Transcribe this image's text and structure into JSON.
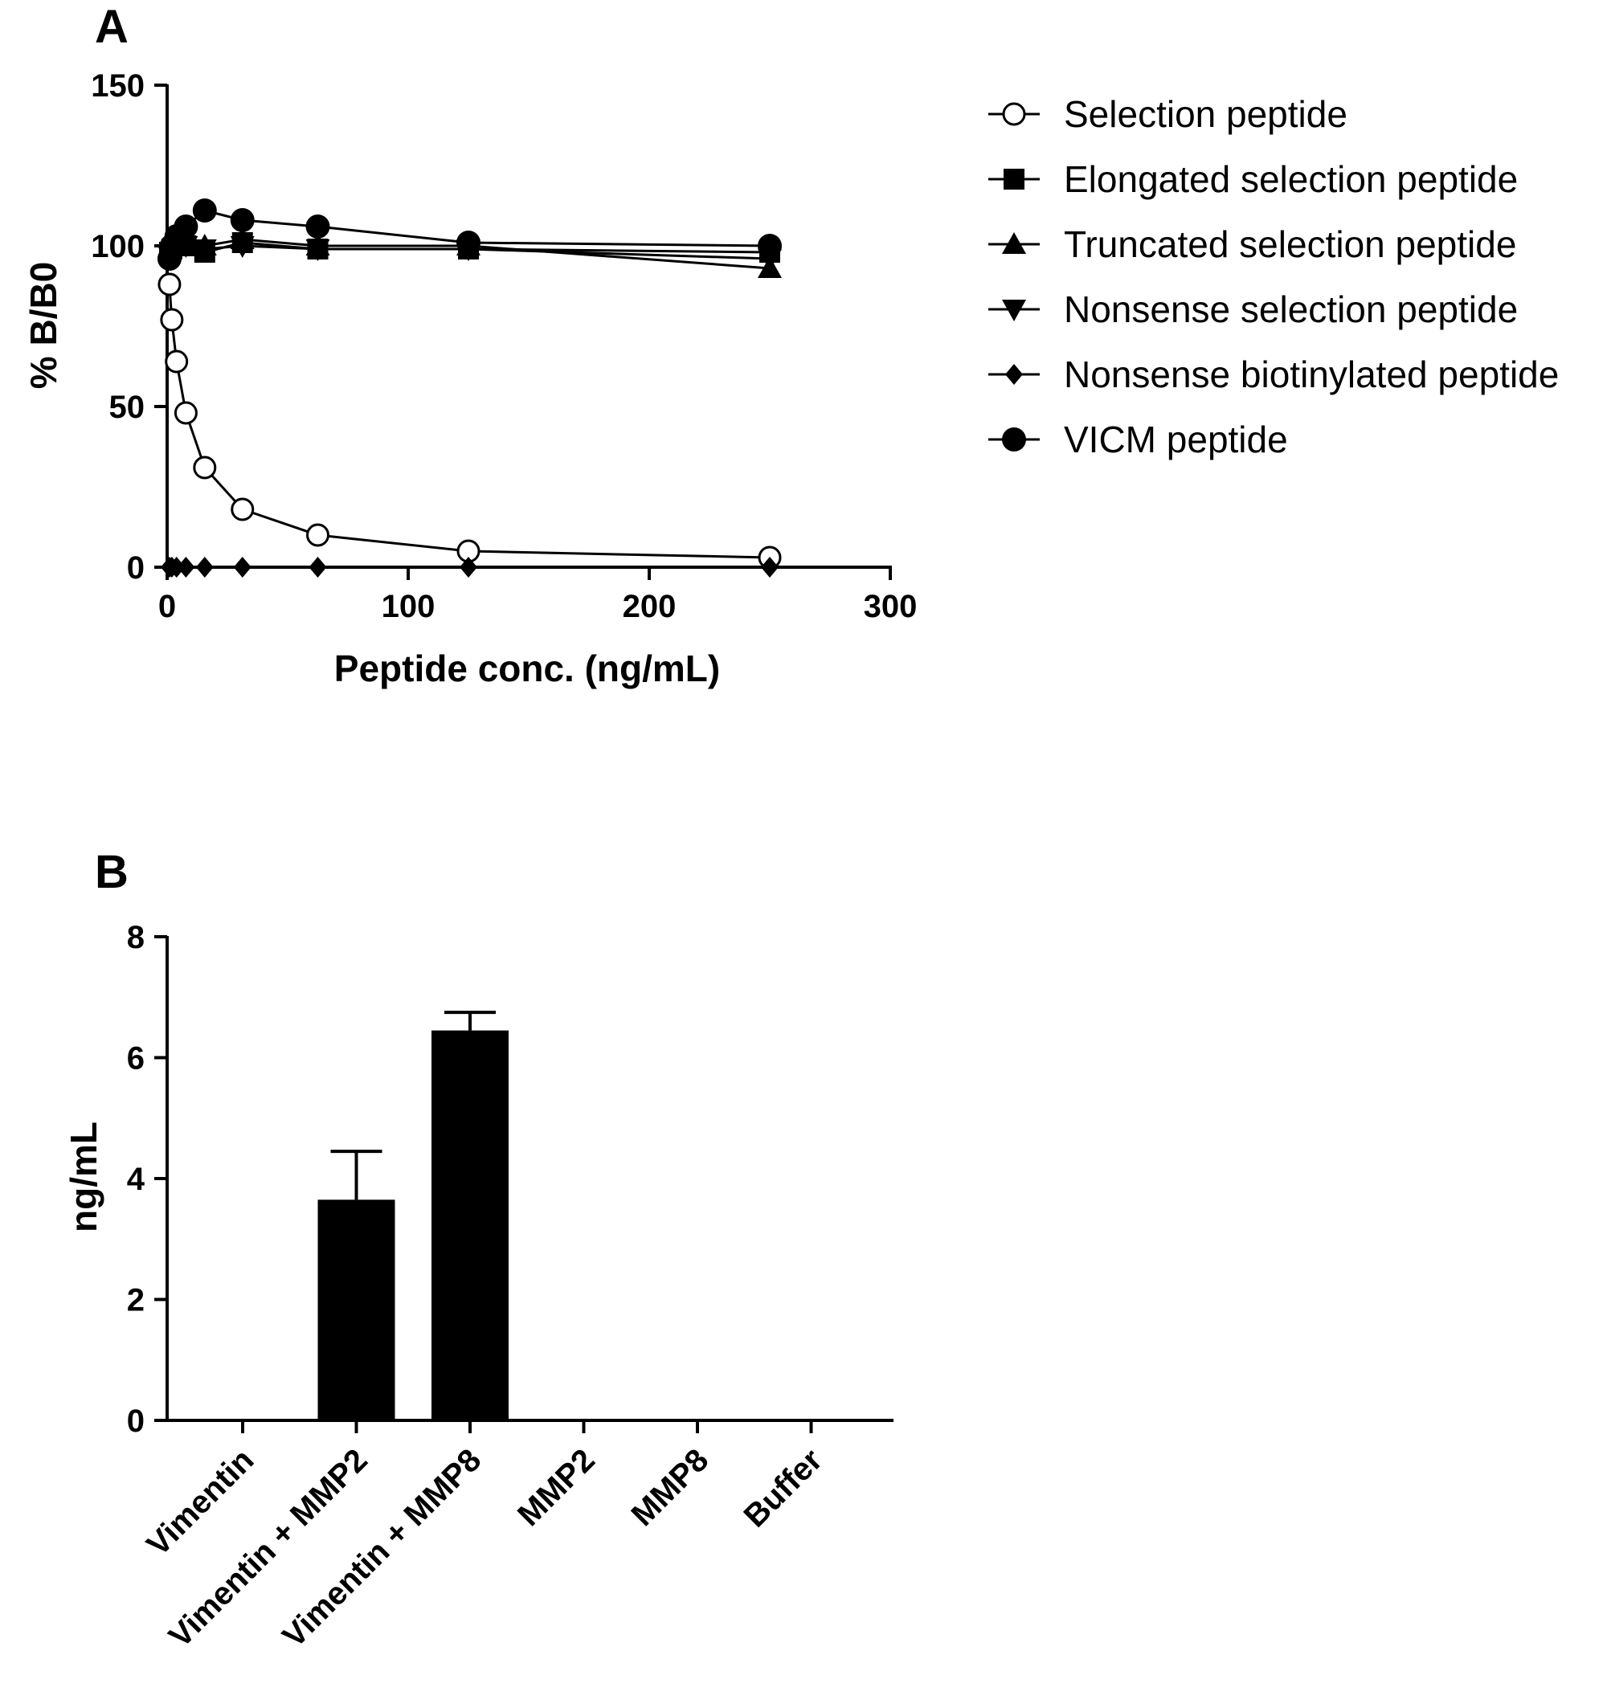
{
  "chart_data": [
    {
      "panel": "A",
      "type": "line",
      "xlabel": "Peptide conc. (ng/mL)",
      "ylabel": "% B/B0",
      "xlim": [
        0,
        300
      ],
      "ylim": [
        0,
        150
      ],
      "xticks": [
        "0",
        "100",
        "200",
        "300"
      ],
      "yticks": [
        "0",
        "50",
        "100",
        "150"
      ],
      "legend_position": "right",
      "grid": false,
      "series": [
        {
          "name": "Selection peptide",
          "marker": "open-circle",
          "x": [
            0.98,
            1.95,
            3.9,
            7.8,
            15.6,
            31.25,
            62.5,
            125,
            250
          ],
          "y": [
            88,
            77,
            64,
            48,
            31,
            18,
            10,
            5,
            3
          ]
        },
        {
          "name": "Elongated selection peptide",
          "marker": "square",
          "x": [
            0.98,
            1.95,
            3.9,
            7.8,
            15.6,
            31.25,
            62.5,
            125,
            250
          ],
          "y": [
            98,
            99,
            100,
            100,
            98,
            101,
            99,
            99,
            98
          ]
        },
        {
          "name": "Truncated selection peptide",
          "marker": "triangle-up",
          "x": [
            0.98,
            1.95,
            3.9,
            7.8,
            15.6,
            31.25,
            62.5,
            125,
            250
          ],
          "y": [
            99,
            100,
            101,
            101,
            100,
            102,
            100,
            100,
            93
          ]
        },
        {
          "name": "Nonsense selection peptide",
          "marker": "triangle-down",
          "x": [
            0.98,
            1.95,
            3.9,
            7.8,
            15.6,
            31.25,
            62.5,
            125,
            250
          ],
          "y": [
            97,
            98,
            99,
            100,
            99,
            100,
            99,
            99,
            96
          ]
        },
        {
          "name": "Nonsense biotinylated peptide",
          "marker": "diamond",
          "x": [
            0.98,
            1.95,
            3.9,
            7.8,
            15.6,
            31.25,
            62.5,
            125,
            250
          ],
          "y": [
            0,
            0,
            0,
            0,
            0,
            0,
            0,
            0,
            0
          ]
        },
        {
          "name": "VICM peptide",
          "marker": "filled-circle",
          "x": [
            0.98,
            1.95,
            3.9,
            7.8,
            15.6,
            31.25,
            62.5,
            125,
            250
          ],
          "y": [
            96,
            100,
            103,
            106,
            111,
            108,
            106,
            101,
            100
          ]
        }
      ]
    },
    {
      "panel": "B",
      "type": "bar",
      "xlabel": "",
      "ylabel": "ng/mL",
      "ylim": [
        0,
        8
      ],
      "yticks": [
        "0",
        "2",
        "4",
        "6",
        "8"
      ],
      "categories": [
        "Vimentin",
        "Vimentin + MMP2",
        "Vimentin + MMP8",
        "MMP2",
        "MMP8",
        "Buffer"
      ],
      "values": [
        0,
        3.65,
        6.45,
        0,
        0,
        0
      ],
      "error_upper": [
        0,
        0.8,
        0.3,
        0,
        0,
        0
      ],
      "bar_color": "#000000",
      "grid": false
    }
  ]
}
